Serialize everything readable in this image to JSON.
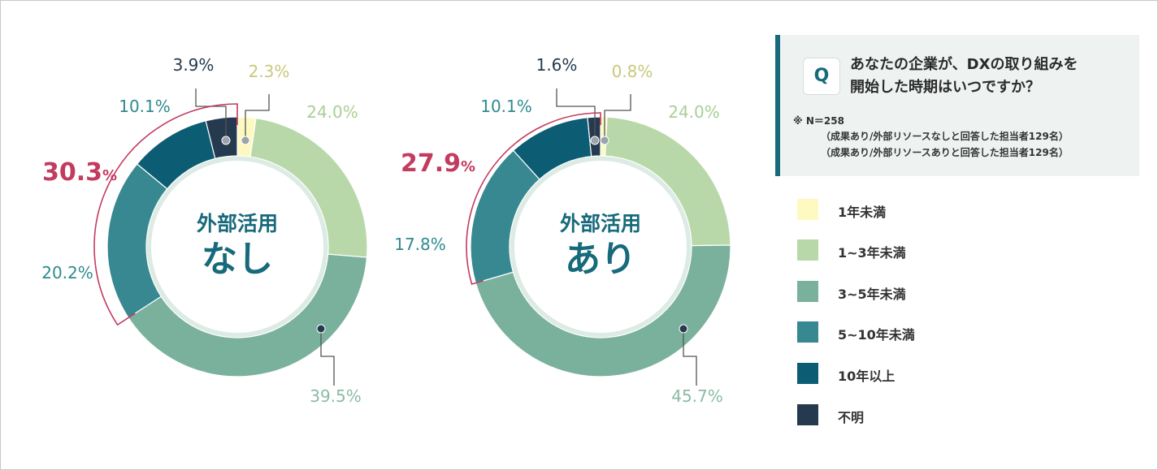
{
  "question": {
    "badge": "Q",
    "line1": "あなたの企業が、DXの取り組みを",
    "line2": "開始した時期はいつですか？",
    "note1": "※ N＝258",
    "note2": "（成果あり/外部リソースなしと回答した担当者129名）",
    "note3": "（成果あり/外部リソースありと回答した担当者129名）"
  },
  "legend": [
    {
      "label": "1年未満",
      "color": "#fdf9c0"
    },
    {
      "label": "1~3年未満",
      "color": "#b9d8a9"
    },
    {
      "label": "3~5年未満",
      "color": "#7ab19d"
    },
    {
      "label": "5~10年未満",
      "color": "#378890"
    },
    {
      "label": "10年以上",
      "color": "#0c5c74"
    },
    {
      "label": "不明",
      "color": "#253a4f"
    }
  ],
  "chart_data": [
    {
      "type": "pie",
      "title_line1": "外部活用",
      "title_line2": "なし",
      "categories": [
        "1年未満",
        "1~3年未満",
        "3~5年未満",
        "5~10年未満",
        "10年以上",
        "不明"
      ],
      "values": [
        2.3,
        24.0,
        39.5,
        20.2,
        10.1,
        3.9
      ],
      "labels": [
        "2.3%",
        "24.0%",
        "39.5%",
        "20.2%",
        "10.1%",
        "3.9%"
      ],
      "highlight": {
        "value": "30.3",
        "unit": "%"
      }
    },
    {
      "type": "pie",
      "title_line1": "外部活用",
      "title_line2": "あり",
      "categories": [
        "1年未満",
        "1~3年未満",
        "3~5年未満",
        "5~10年未満",
        "10年以上",
        "不明"
      ],
      "values": [
        0.8,
        24.0,
        45.7,
        17.8,
        10.1,
        1.6
      ],
      "labels": [
        "0.8%",
        "24.0%",
        "45.7%",
        "17.8%",
        "10.1%",
        "1.6%"
      ],
      "highlight": {
        "value": "27.9",
        "unit": "%"
      }
    }
  ]
}
